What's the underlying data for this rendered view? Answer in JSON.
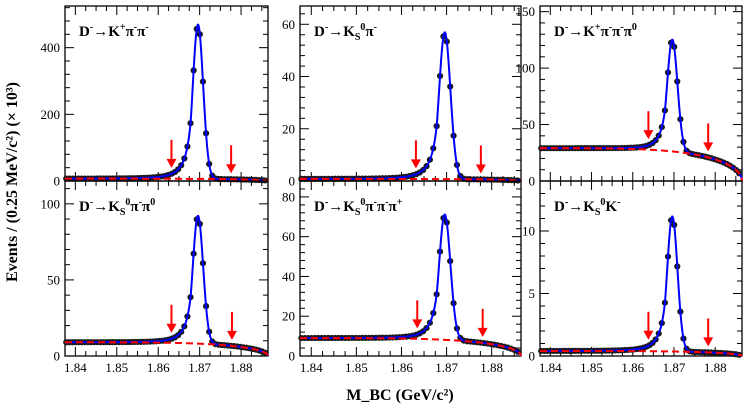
{
  "figure": {
    "ylabel": "Events / (0.25 MeV/c²) (× 10³)",
    "xlabel": "M_BC (GeV/c²)"
  },
  "colors": {
    "data_points": "#1a1a1a",
    "fit_line": "#0000ff",
    "background_line": "#ff0000",
    "arrows": "#ff0000"
  },
  "chart_data": [
    {
      "type": "line",
      "title": "D⁻→K⁺π⁻π⁻",
      "xlim": [
        1.8375,
        1.8865
      ],
      "ylim": [
        0,
        525
      ],
      "xticks": [
        1.84,
        1.85,
        1.86,
        1.87,
        1.88
      ],
      "yticks": [
        0,
        200,
        400
      ],
      "peak": 470,
      "background_level": 7,
      "signal_window_arrows": [
        1.8632,
        1.8776
      ],
      "series": [
        {
          "role": "data points"
        },
        {
          "role": "total fit"
        },
        {
          "role": "background fit"
        }
      ]
    },
    {
      "type": "line",
      "title": "D⁻→K_S⁰π⁻",
      "xlim": [
        1.8375,
        1.8865
      ],
      "ylim": [
        0,
        67
      ],
      "xticks": [
        1.84,
        1.85,
        1.86,
        1.87,
        1.88
      ],
      "yticks": [
        0,
        20,
        40,
        60
      ],
      "peak": 57,
      "background_level": 0.8,
      "signal_window_arrows": [
        1.8632,
        1.8776
      ],
      "series": [
        {
          "role": "data points"
        },
        {
          "role": "total fit"
        },
        {
          "role": "background fit"
        }
      ]
    },
    {
      "type": "line",
      "title": "D⁻→K⁺π⁻π⁻π⁰",
      "xlim": [
        1.8375,
        1.8865
      ],
      "ylim": [
        0,
        155
      ],
      "xticks": [
        1.84,
        1.85,
        1.86,
        1.87,
        1.88
      ],
      "yticks": [
        0,
        50,
        100,
        150
      ],
      "peak": 128,
      "background_level": 29,
      "signal_window_arrows": [
        1.8638,
        1.8783
      ],
      "series": [
        {
          "role": "data points"
        },
        {
          "role": "total fit"
        },
        {
          "role": "background fit"
        }
      ]
    },
    {
      "type": "line",
      "title": "D⁻→K_S⁰π⁻π⁰",
      "xlim": [
        1.8375,
        1.8865
      ],
      "ylim": [
        0,
        115
      ],
      "xticks": [
        1.84,
        1.85,
        1.86,
        1.87,
        1.88
      ],
      "yticks": [
        0,
        50,
        100
      ],
      "peak": 93,
      "background_level": 9,
      "signal_window_arrows": [
        1.8632,
        1.8778
      ],
      "series": [
        {
          "role": "data points"
        },
        {
          "role": "total fit"
        },
        {
          "role": "background fit"
        }
      ]
    },
    {
      "type": "line",
      "title": "D⁻→K_S⁰π⁻π⁻π⁺",
      "xlim": [
        1.8375,
        1.8865
      ],
      "ylim": [
        0,
        88
      ],
      "xticks": [
        1.84,
        1.85,
        1.86,
        1.87,
        1.88
      ],
      "yticks": [
        0,
        20,
        40,
        60,
        80
      ],
      "peak": 72,
      "background_level": 9,
      "signal_window_arrows": [
        1.8635,
        1.878
      ],
      "series": [
        {
          "role": "data points"
        },
        {
          "role": "total fit"
        },
        {
          "role": "background fit"
        }
      ]
    },
    {
      "type": "line",
      "title": "D⁻→K_S⁰K⁻",
      "xlim": [
        1.8375,
        1.8865
      ],
      "ylim": [
        0,
        14
      ],
      "xticks": [
        1.84,
        1.85,
        1.86,
        1.87,
        1.88
      ],
      "yticks": [
        0,
        5,
        10
      ],
      "peak": 11.2,
      "background_level": 0.4,
      "signal_window_arrows": [
        1.8638,
        1.8783
      ],
      "series": [
        {
          "role": "data points"
        },
        {
          "role": "total fit"
        },
        {
          "role": "background fit"
        }
      ]
    }
  ]
}
